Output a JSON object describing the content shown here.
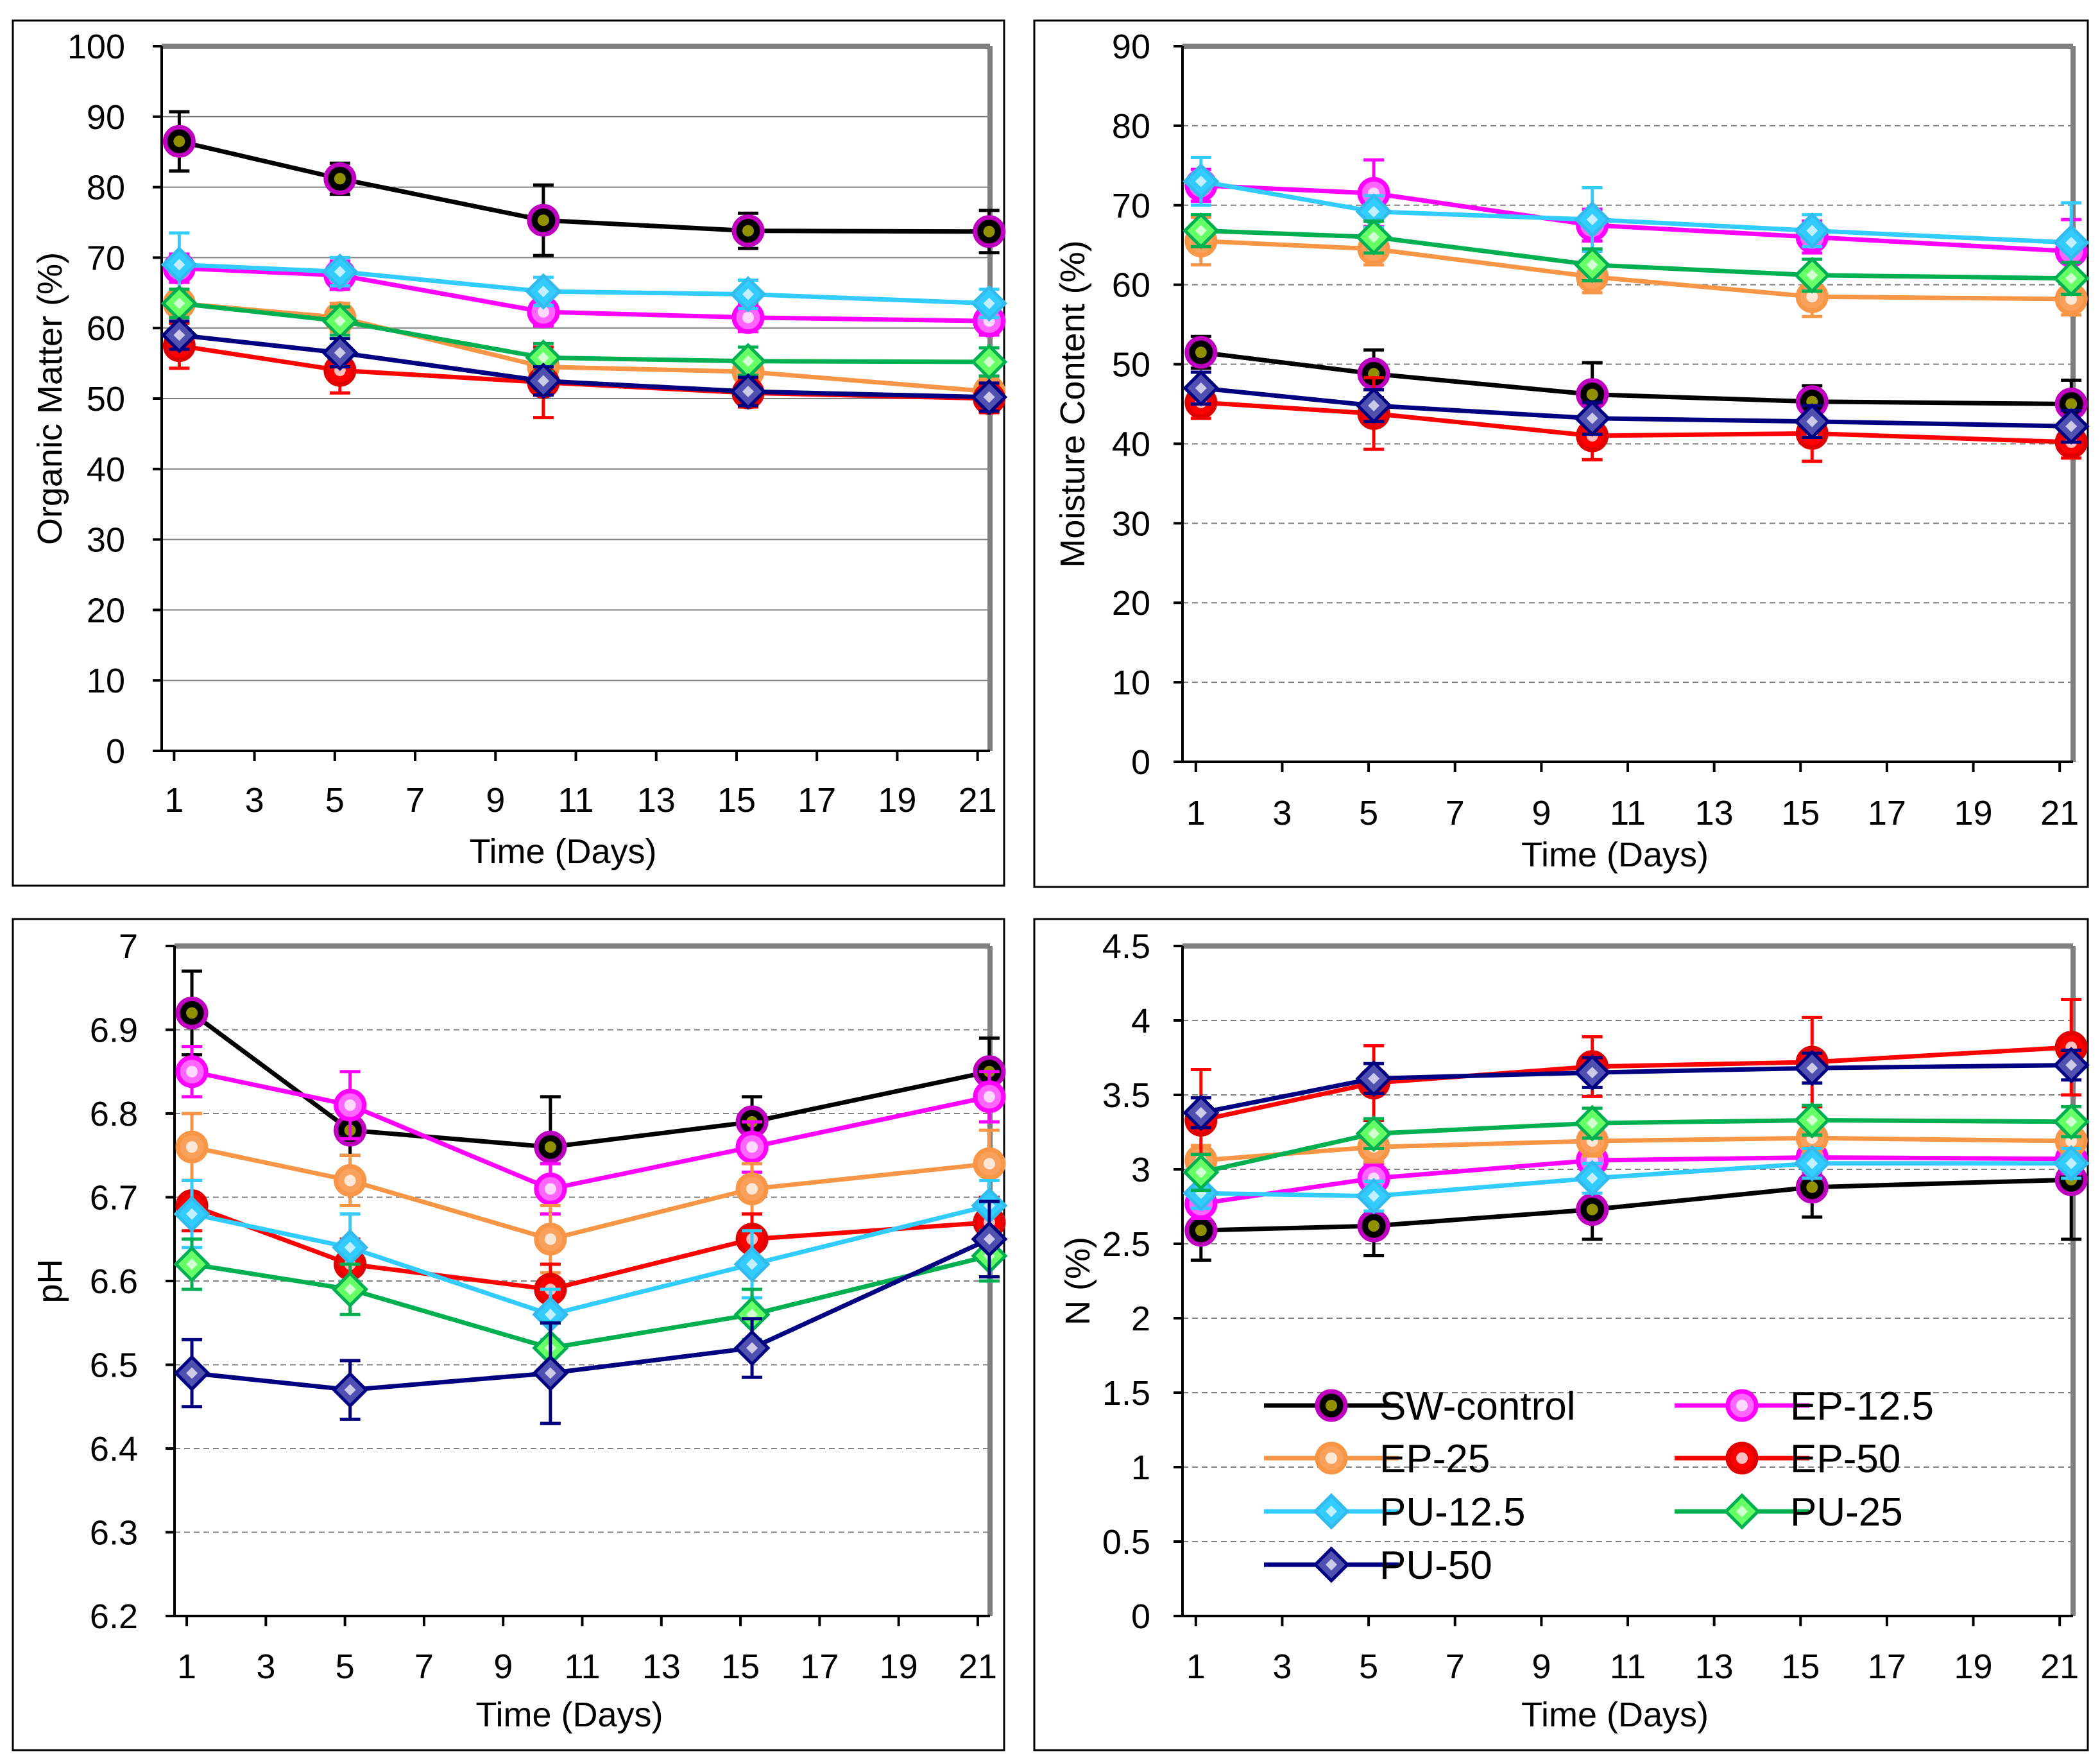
{
  "chart_data": [
    {
      "type": "line",
      "title": "",
      "xlabel": "Time (Days)",
      "ylabel": "Organic Matter (%)",
      "xlim": [
        1,
        21
      ],
      "ylim": [
        0,
        100
      ],
      "xticks": [
        "1",
        "3",
        "5",
        "7",
        "9",
        "11",
        "13",
        "15",
        "17",
        "19",
        "21"
      ],
      "yticks": [
        "0",
        "10",
        "20",
        "30",
        "40",
        "50",
        "60",
        "70",
        "80",
        "90",
        "100"
      ],
      "grid": "solid",
      "legend": "none",
      "x": [
        1,
        5,
        10,
        15,
        21
      ],
      "series": [
        {
          "name": "SW-control",
          "values": [
            86.5,
            81.2,
            75.3,
            73.8,
            73.7
          ],
          "errors": [
            4.2,
            2.2,
            5.0,
            2.5,
            3.0
          ]
        },
        {
          "name": "EP-12.5",
          "values": [
            68.5,
            67.5,
            62.3,
            61.5,
            61.0
          ],
          "errors": [
            2.0,
            2.0,
            2.0,
            2.0,
            2.0
          ]
        },
        {
          "name": "EP-25",
          "values": [
            63.5,
            61.5,
            54.5,
            53.8,
            51.0
          ],
          "errors": [
            2.0,
            2.0,
            2.0,
            2.0,
            2.0
          ]
        },
        {
          "name": "EP-50",
          "values": [
            57.5,
            54.0,
            52.3,
            50.8,
            50.0
          ],
          "errors": [
            3.2,
            3.2,
            5.0,
            2.0,
            2.0
          ]
        },
        {
          "name": "PU-12.5",
          "values": [
            69.0,
            68.0,
            65.2,
            64.8,
            63.5
          ],
          "errors": [
            4.5,
            2.0,
            2.0,
            2.0,
            2.0
          ]
        },
        {
          "name": "PU-25",
          "values": [
            63.5,
            61.0,
            55.8,
            55.3,
            55.2
          ],
          "errors": [
            2.0,
            2.0,
            2.0,
            2.0,
            2.0
          ]
        },
        {
          "name": "PU-50",
          "values": [
            59.0,
            56.5,
            52.5,
            51.0,
            50.2
          ],
          "errors": [
            2.0,
            2.0,
            2.0,
            2.0,
            2.0
          ]
        }
      ]
    },
    {
      "type": "line",
      "title": "",
      "xlabel": "Time (Days)",
      "ylabel": "Moisture Content (%)",
      "xlim": [
        1,
        21
      ],
      "ylim": [
        0,
        90
      ],
      "xticks": [
        "1",
        "3",
        "5",
        "7",
        "9",
        "11",
        "13",
        "15",
        "17",
        "19",
        "21"
      ],
      "yticks": [
        "0",
        "10",
        "20",
        "30",
        "40",
        "50",
        "60",
        "70",
        "80",
        "90"
      ],
      "grid": "dashed",
      "legend": "none",
      "x": [
        1,
        5,
        10,
        15,
        21
      ],
      "series": [
        {
          "name": "SW-control",
          "values": [
            51.5,
            48.8,
            46.2,
            45.3,
            45.0
          ],
          "errors": [
            2.0,
            3.0,
            4.0,
            2.0,
            3.0
          ]
        },
        {
          "name": "EP-12.5",
          "values": [
            72.5,
            71.5,
            67.5,
            66.0,
            64.2
          ],
          "errors": [
            2.0,
            4.2,
            2.0,
            2.0,
            4.0
          ]
        },
        {
          "name": "EP-25",
          "values": [
            65.5,
            64.5,
            61.0,
            58.5,
            58.2
          ],
          "errors": [
            3.0,
            2.0,
            2.0,
            2.5,
            2.0
          ]
        },
        {
          "name": "EP-50",
          "values": [
            45.2,
            43.8,
            41.0,
            41.3,
            40.2
          ],
          "errors": [
            2.0,
            4.5,
            3.0,
            3.5,
            2.0
          ]
        },
        {
          "name": "PU-12.5",
          "values": [
            73.0,
            69.2,
            68.2,
            66.8,
            65.3
          ],
          "errors": [
            3.0,
            2.0,
            4.0,
            2.0,
            5.0
          ]
        },
        {
          "name": "PU-25",
          "values": [
            66.8,
            66.0,
            62.5,
            61.2,
            60.8
          ],
          "errors": [
            2.0,
            2.0,
            2.0,
            2.0,
            2.0
          ]
        },
        {
          "name": "PU-50",
          "values": [
            47.0,
            44.8,
            43.2,
            42.8,
            42.2
          ],
          "errors": [
            2.0,
            2.0,
            2.0,
            2.0,
            2.0
          ]
        }
      ]
    },
    {
      "type": "line",
      "title": "",
      "xlabel": "Time (Days)",
      "ylabel": "pH",
      "xlim": [
        1,
        21
      ],
      "ylim": [
        6.2,
        7.0
      ],
      "xticks": [
        "1",
        "3",
        "5",
        "7",
        "9",
        "11",
        "13",
        "15",
        "17",
        "19",
        "21"
      ],
      "yticks": [
        "6.2",
        "6.3",
        "6.4",
        "6.5",
        "6.6",
        "6.7",
        "6.8",
        "6.9",
        "7"
      ],
      "grid": "dashed",
      "legend": "none",
      "x": [
        1,
        5,
        10,
        15,
        21
      ],
      "series": [
        {
          "name": "SW-control",
          "values": [
            6.92,
            6.78,
            6.76,
            6.79,
            6.85
          ],
          "errors": [
            0.05,
            0.03,
            0.06,
            0.03,
            0.04
          ]
        },
        {
          "name": "EP-12.5",
          "values": [
            6.85,
            6.81,
            6.71,
            6.76,
            6.82
          ],
          "errors": [
            0.03,
            0.04,
            0.03,
            0.03,
            0.03
          ]
        },
        {
          "name": "EP-25",
          "values": [
            6.76,
            6.72,
            6.65,
            6.71,
            6.74
          ],
          "errors": [
            0.04,
            0.03,
            0.04,
            0.03,
            0.04
          ]
        },
        {
          "name": "EP-50",
          "values": [
            6.69,
            6.62,
            6.59,
            6.65,
            6.67
          ],
          "errors": [
            0.03,
            0.03,
            0.03,
            0.03,
            0.03
          ]
        },
        {
          "name": "PU-12.5",
          "values": [
            6.68,
            6.64,
            6.56,
            6.62,
            6.69
          ],
          "errors": [
            0.04,
            0.04,
            0.03,
            0.04,
            0.03
          ]
        },
        {
          "name": "PU-25",
          "values": [
            6.62,
            6.59,
            6.52,
            6.56,
            6.63
          ],
          "errors": [
            0.03,
            0.03,
            0.03,
            0.03,
            0.03
          ]
        },
        {
          "name": "PU-50",
          "values": [
            6.49,
            6.47,
            6.49,
            6.52,
            6.65
          ],
          "errors": [
            0.04,
            0.035,
            0.06,
            0.035,
            0.045
          ]
        }
      ]
    },
    {
      "type": "line",
      "title": "",
      "xlabel": "Time (Days)",
      "ylabel": "N (%)",
      "xlim": [
        1,
        21
      ],
      "ylim": [
        0,
        4.5
      ],
      "xticks": [
        "1",
        "3",
        "5",
        "7",
        "9",
        "11",
        "13",
        "15",
        "17",
        "19",
        "21"
      ],
      "yticks": [
        "0",
        "0.5",
        "1",
        "1.5",
        "2",
        "2.5",
        "3",
        "3.5",
        "4",
        "4.5"
      ],
      "grid": "dashed",
      "legend": "bottom-center",
      "x": [
        1,
        5,
        10,
        15,
        21
      ],
      "series": [
        {
          "name": "SW-control",
          "values": [
            2.59,
            2.62,
            2.73,
            2.88,
            2.93
          ],
          "errors": [
            0.2,
            0.2,
            0.2,
            0.2,
            0.4
          ]
        },
        {
          "name": "EP-12.5",
          "values": [
            2.77,
            2.94,
            3.06,
            3.08,
            3.07
          ],
          "errors": [
            0.1,
            0.1,
            0.1,
            0.1,
            0.1
          ]
        },
        {
          "name": "EP-25",
          "values": [
            3.06,
            3.15,
            3.19,
            3.21,
            3.19
          ],
          "errors": [
            0.1,
            0.1,
            0.1,
            0.1,
            0.1
          ]
        },
        {
          "name": "EP-50",
          "values": [
            3.33,
            3.58,
            3.69,
            3.72,
            3.82
          ],
          "errors": [
            0.34,
            0.25,
            0.2,
            0.3,
            0.32
          ]
        },
        {
          "name": "PU-12.5",
          "values": [
            2.84,
            2.82,
            2.94,
            3.04,
            3.04
          ],
          "errors": [
            0.1,
            0.1,
            0.1,
            0.1,
            0.1
          ]
        },
        {
          "name": "PU-25",
          "values": [
            2.98,
            3.24,
            3.31,
            3.33,
            3.32
          ],
          "errors": [
            0.12,
            0.1,
            0.1,
            0.1,
            0.1
          ]
        },
        {
          "name": "PU-50",
          "values": [
            3.38,
            3.61,
            3.65,
            3.68,
            3.7
          ],
          "errors": [
            0.1,
            0.1,
            0.1,
            0.1,
            0.1
          ]
        }
      ]
    }
  ],
  "legend": {
    "entries": [
      "SW-control",
      "EP-12.5",
      "EP-25",
      "EP-50",
      "PU-12.5",
      "PU-25",
      "PU-50"
    ]
  },
  "styles": {
    "SW-control": {
      "line": "#000000",
      "fill": "#000000",
      "inner": "#c0c000",
      "border": "#c000c0",
      "marker": "circle"
    },
    "EP-12.5": {
      "line": "#ff00ff",
      "fill": "#ff66ff",
      "inner": "#ffffff",
      "border": "#ff00ff",
      "marker": "circle"
    },
    "EP-25": {
      "line": "#f79646",
      "fill": "#f8a05c",
      "inner": "#ffffff",
      "border": "#f79646",
      "marker": "circle"
    },
    "EP-50": {
      "line": "#ff0000",
      "fill": "#ff0000",
      "inner": "#ffffff",
      "border": "#e00000",
      "marker": "circle"
    },
    "PU-12.5": {
      "line": "#33ccff",
      "fill": "#33ccff",
      "inner": "#ffffff",
      "border": "#33bbee",
      "marker": "diamond"
    },
    "PU-25": {
      "line": "#00b050",
      "fill": "#66ff66",
      "inner": "#ffffff",
      "border": "#00b050",
      "marker": "diamond"
    },
    "PU-50": {
      "line": "#000080",
      "fill": "#5050b0",
      "inner": "#ffffff",
      "border": "#000080",
      "marker": "diamond"
    }
  }
}
